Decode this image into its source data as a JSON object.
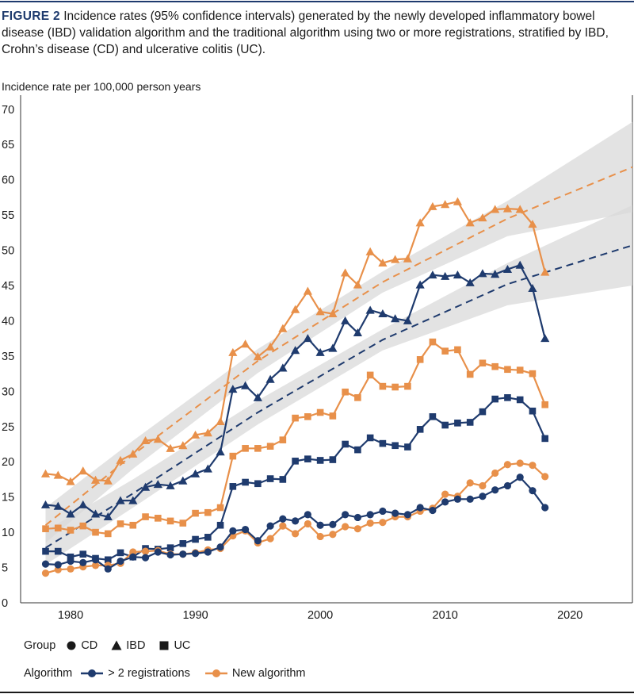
{
  "caption": {
    "figure_label": "FIGURE 2",
    "text": " Incidence rates (95% confidence intervals) generated by the newly developed inflammatory bowel disease (IBD) validation algorithm and the traditional algorithm using two or more registrations, stratified by IBD, Crohn’s disease (CD) and ulcerative colitis (UC)."
  },
  "colors": {
    "new": "#e8904a",
    "old": "#1f3b6e",
    "ci": "#d9d9d9",
    "rule": "#1f3b6e"
  },
  "legend": {
    "group_title": "Group",
    "group_items": [
      {
        "shape": "circle",
        "label": "CD"
      },
      {
        "shape": "triangle",
        "label": "IBD"
      },
      {
        "shape": "square",
        "label": "UC"
      }
    ],
    "algorithm_title": "Algorithm",
    "algorithm_items": [
      {
        "key": "old",
        "label": "> 2 registrations"
      },
      {
        "key": "new",
        "label": "New algorithm"
      }
    ]
  },
  "chart_data": {
    "type": "line",
    "title": "",
    "ylabel": "Incidence rate per 100,000 person years",
    "xlabel": "",
    "xlim": [
      1976,
      2025
    ],
    "ylim": [
      0,
      72
    ],
    "x_ticks": [
      1980,
      1990,
      2000,
      2010,
      2020
    ],
    "y_ticks": [
      0,
      5,
      10,
      15,
      20,
      25,
      30,
      35,
      40,
      45,
      50,
      55,
      60,
      65,
      70
    ],
    "grid": false,
    "x": [
      1978,
      1979,
      1980,
      1981,
      1982,
      1983,
      1984,
      1985,
      1986,
      1987,
      1988,
      1989,
      1990,
      1991,
      1992,
      1993,
      1994,
      1995,
      1996,
      1997,
      1998,
      1999,
      2000,
      2001,
      2002,
      2003,
      2004,
      2005,
      2006,
      2007,
      2008,
      2009,
      2010,
      2011,
      2012,
      2013,
      2014,
      2015,
      2016,
      2017,
      2018
    ],
    "series": [
      {
        "group": "IBD",
        "algorithm": "new",
        "shape": "triangle",
        "values": [
          18.3,
          18.1,
          17.2,
          18.7,
          17.4,
          17.3,
          20.2,
          21.1,
          23.0,
          23.2,
          21.9,
          22.3,
          23.8,
          24.1,
          25.7,
          35.5,
          36.7,
          34.9,
          36.3,
          38.9,
          41.6,
          44.2,
          41.3,
          41.0,
          46.8,
          45.1,
          49.8,
          48.2,
          48.7,
          48.8,
          53.9,
          56.2,
          56.5,
          56.9,
          53.9,
          54.6,
          55.8,
          55.9,
          55.8,
          53.7,
          46.9
        ]
      },
      {
        "group": "IBD",
        "algorithm": "old",
        "shape": "triangle",
        "values": [
          13.9,
          13.7,
          12.6,
          13.9,
          12.6,
          12.2,
          14.5,
          14.5,
          16.4,
          16.8,
          16.6,
          17.3,
          18.3,
          19.0,
          21.4,
          30.3,
          30.8,
          29.1,
          31.7,
          33.3,
          35.8,
          37.5,
          35.5,
          36.1,
          40.0,
          38.3,
          41.5,
          41.0,
          40.3,
          40.0,
          45.1,
          46.5,
          46.3,
          46.5,
          45.4,
          46.7,
          46.6,
          47.3,
          47.9,
          44.6,
          37.5
        ]
      },
      {
        "group": "UC",
        "algorithm": "new",
        "shape": "square",
        "values": [
          10.5,
          10.6,
          10.3,
          10.9,
          10.0,
          9.8,
          11.2,
          11.0,
          12.2,
          12.0,
          11.6,
          11.3,
          12.7,
          12.8,
          13.5,
          20.8,
          21.9,
          21.9,
          22.2,
          23.1,
          26.2,
          26.4,
          27.0,
          26.5,
          29.9,
          29.1,
          32.3,
          30.7,
          30.6,
          30.7,
          34.5,
          37.0,
          35.7,
          35.9,
          32.4,
          34.0,
          33.5,
          33.1,
          33.0,
          32.5,
          28.1
        ]
      },
      {
        "group": "UC",
        "algorithm": "old",
        "shape": "square",
        "values": [
          7.3,
          7.3,
          6.5,
          6.9,
          6.3,
          6.1,
          7.1,
          6.5,
          7.7,
          7.6,
          7.8,
          8.4,
          9.0,
          9.3,
          11.0,
          16.5,
          17.1,
          16.9,
          17.6,
          17.5,
          20.1,
          20.4,
          20.2,
          20.3,
          22.5,
          21.7,
          23.4,
          22.6,
          22.3,
          22.1,
          24.6,
          26.4,
          25.2,
          25.5,
          25.6,
          27.1,
          28.9,
          29.1,
          28.8,
          27.2,
          23.3
        ]
      },
      {
        "group": "CD",
        "algorithm": "new",
        "shape": "circle",
        "values": [
          4.2,
          4.7,
          4.8,
          5.1,
          5.3,
          5.3,
          5.6,
          7.2,
          7.3,
          7.4,
          6.9,
          6.9,
          7.1,
          7.5,
          7.7,
          9.5,
          10.2,
          8.5,
          9.1,
          10.9,
          9.8,
          11.2,
          9.4,
          9.7,
          10.8,
          10.5,
          11.3,
          11.4,
          12.2,
          12.2,
          13.0,
          13.4,
          15.4,
          15.1,
          17.0,
          16.6,
          18.4,
          19.6,
          19.8,
          19.5,
          17.9
        ]
      },
      {
        "group": "CD",
        "algorithm": "old",
        "shape": "circle",
        "values": [
          5.5,
          5.4,
          5.9,
          5.7,
          6.1,
          4.8,
          5.9,
          6.5,
          6.4,
          7.2,
          6.8,
          6.9,
          7.0,
          7.2,
          7.9,
          10.2,
          10.4,
          8.8,
          10.9,
          11.9,
          11.6,
          12.5,
          11.0,
          11.1,
          12.5,
          12.1,
          12.5,
          13.0,
          12.7,
          12.5,
          13.5,
          13.1,
          14.3,
          14.7,
          14.7,
          15.1,
          16.0,
          16.6,
          17.8,
          15.9,
          13.5
        ]
      }
    ],
    "trend_lines": [
      {
        "algorithm": "new",
        "x": [
          1978,
          1985,
          1995,
          2005,
          2015,
          2025
        ],
        "y": [
          11.0,
          21.0,
          34.3,
          45.5,
          54.5,
          61.8
        ],
        "ci_upper": [
          13.5,
          23.0,
          36.0,
          47.0,
          57.0,
          68.2
        ],
        "ci_lower": [
          8.5,
          19.0,
          32.6,
          44.0,
          52.0,
          55.4
        ]
      },
      {
        "algorithm": "old",
        "x": [
          1978,
          1985,
          1995,
          2005,
          2015,
          2025
        ],
        "y": [
          7.8,
          15.5,
          27.0,
          37.3,
          45.2,
          50.7
        ],
        "ci_upper": [
          10.2,
          17.5,
          28.7,
          38.8,
          48.2,
          56.4
        ],
        "ci_lower": [
          5.4,
          13.5,
          25.3,
          35.8,
          42.2,
          45.0
        ]
      }
    ]
  }
}
